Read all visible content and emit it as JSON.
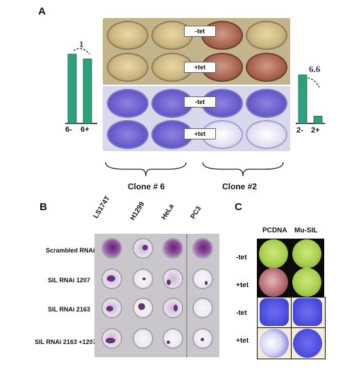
{
  "panels": {
    "a": {
      "letter": "A",
      "rows": [
        "-tet",
        "+tet",
        "-tet",
        "+tet"
      ],
      "clones": [
        "Clone # 6",
        "Clone #2"
      ],
      "left_bars": {
        "categories": [
          "6-",
          "6+"
        ],
        "values": [
          1.0,
          0.93
        ],
        "annotation": "1",
        "color": "#2fa07d"
      },
      "right_bars": {
        "categories": [
          "2-",
          "2+"
        ],
        "values": [
          1.0,
          0.15
        ],
        "annotation": "6.6",
        "color": "#2fa07d"
      }
    },
    "b": {
      "letter": "B",
      "columns": [
        "LS174T",
        "H1299",
        "HeLa",
        "PC3"
      ],
      "rows": [
        "Scrambled RNAi",
        "SIL RNAi 1207",
        "SIL RNAi 2163",
        "SIL RNAi 2163 +1207"
      ]
    },
    "c": {
      "letter": "C",
      "columns": [
        "PCDNA",
        "Mu-SIL"
      ],
      "rows": [
        "-tet",
        "+tet",
        "-tet",
        "+tet"
      ]
    }
  },
  "colors": {
    "bar": "#2fa07d",
    "annotation": "#2e3a7a"
  }
}
